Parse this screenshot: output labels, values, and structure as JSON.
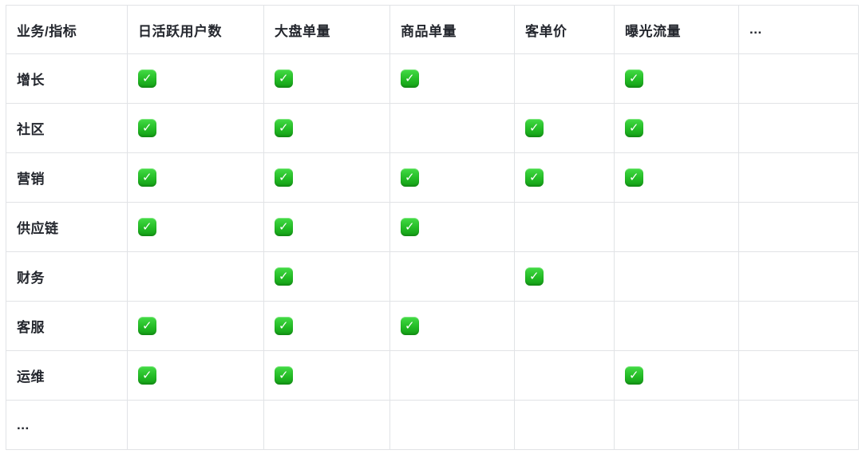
{
  "chart_data": {
    "type": "table",
    "corner_header": "业务/指标",
    "columns": [
      "日活跃用户数",
      "大盘单量",
      "商品单量",
      "客单价",
      "曝光流量",
      "..."
    ],
    "rows": [
      {
        "label": "增长",
        "checks": [
          true,
          true,
          true,
          false,
          true,
          false
        ]
      },
      {
        "label": "社区",
        "checks": [
          true,
          true,
          false,
          true,
          true,
          false
        ]
      },
      {
        "label": "营销",
        "checks": [
          true,
          true,
          true,
          true,
          true,
          false
        ]
      },
      {
        "label": "供应链",
        "checks": [
          true,
          true,
          true,
          false,
          false,
          false
        ]
      },
      {
        "label": "财务",
        "checks": [
          false,
          true,
          false,
          true,
          false,
          false
        ]
      },
      {
        "label": "客服",
        "checks": [
          true,
          true,
          true,
          false,
          false,
          false
        ]
      },
      {
        "label": "运维",
        "checks": [
          true,
          true,
          false,
          false,
          true,
          false
        ]
      },
      {
        "label": "...",
        "checks": [
          false,
          false,
          false,
          false,
          false,
          false
        ]
      }
    ],
    "legend_position": "none",
    "grid": "on"
  },
  "icons": {
    "check": "✓"
  },
  "colors": {
    "check_green_top": "#44dc46",
    "check_green_bottom": "#149e16",
    "check_mark": "#ffffff",
    "border": "#e1e3e6",
    "text": "#24272e",
    "background": "#ffffff"
  }
}
